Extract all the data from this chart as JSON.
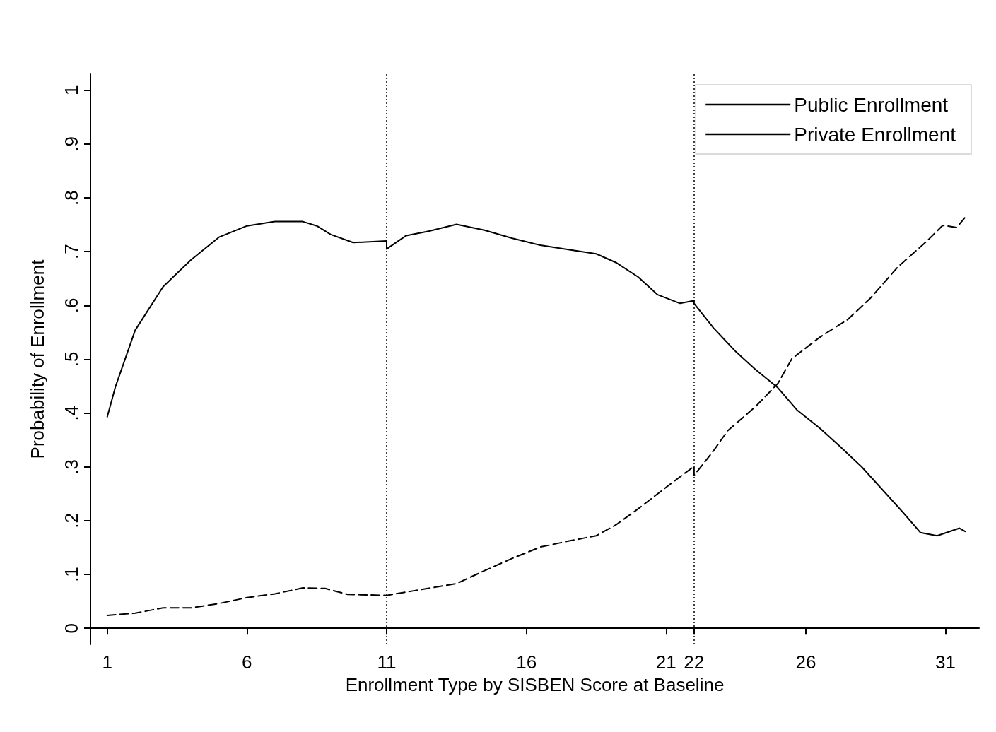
{
  "chart_data": {
    "type": "line",
    "xlabel": "Enrollment Type by SISBEN Score at Baseline",
    "ylabel": "Probability of Enrollment",
    "xlim": [
      0.4,
      32.2
    ],
    "xticks": [
      1,
      6,
      11,
      16,
      21,
      22,
      26,
      31
    ],
    "ylim": [
      -0.03,
      1.03
    ],
    "yticks": [
      {
        "value": 0,
        "label": "0"
      },
      {
        "value": 0.1,
        "label": ".1"
      },
      {
        "value": 0.2,
        "label": ".2"
      },
      {
        "value": 0.3,
        "label": ".3"
      },
      {
        "value": 0.4,
        "label": ".4"
      },
      {
        "value": 0.5,
        "label": ".5"
      },
      {
        "value": 0.6,
        "label": ".6"
      },
      {
        "value": 0.7,
        "label": ".7"
      },
      {
        "value": 0.8,
        "label": ".8"
      },
      {
        "value": 0.9,
        "label": ".9"
      },
      {
        "value": 1,
        "label": "1"
      }
    ],
    "grid": false,
    "legend": "top right",
    "marker": "none",
    "ref_lines": [
      {
        "axis": "x",
        "value": 11,
        "color": "#000000",
        "line_style": "dotted"
      },
      {
        "axis": "x",
        "value": 22,
        "color": "#000000",
        "line_style": "dotted"
      }
    ],
    "series": [
      {
        "name": "Public Enrollment",
        "color": "#000000",
        "line_style": "solid",
        "x": [
          1,
          1.3,
          2,
          3,
          4,
          5,
          6,
          7,
          8,
          8.5,
          9,
          9.8,
          11,
          11,
          11.7,
          12.5,
          13.5,
          14.5,
          15.5,
          16.5,
          17.5,
          18.5,
          19.2,
          20,
          20.7,
          21.5,
          22,
          22,
          22.7,
          23.5,
          24.2,
          25,
          25.7,
          26.5,
          27.2,
          28,
          28.7,
          29.5,
          30.1,
          30.7,
          31.5,
          31.7
        ],
        "values": [
          0.393,
          0.45,
          0.554,
          0.635,
          0.685,
          0.727,
          0.748,
          0.756,
          0.756,
          0.748,
          0.732,
          0.717,
          0.72,
          0.705,
          0.73,
          0.738,
          0.751,
          0.74,
          0.725,
          0.712,
          0.704,
          0.696,
          0.68,
          0.653,
          0.62,
          0.604,
          0.609,
          0.604,
          0.558,
          0.514,
          0.481,
          0.447,
          0.405,
          0.372,
          0.339,
          0.3,
          0.26,
          0.214,
          0.178,
          0.172,
          0.186,
          0.18
        ]
      },
      {
        "name": "Private Enrollment",
        "color": "#000000",
        "line_style": "dashed",
        "x": [
          1,
          2,
          3,
          4,
          5,
          6,
          7,
          8,
          8.8,
          9.6,
          11,
          12,
          13.5,
          14.5,
          15.5,
          16.5,
          17.5,
          18.5,
          19.2,
          20,
          21,
          22,
          22,
          22.7,
          23.2,
          24.2,
          25,
          25.5,
          26.5,
          27.5,
          28.3,
          29.3,
          30.3,
          30.9,
          31.4,
          31.7
        ],
        "values": [
          0.024,
          0.028,
          0.038,
          0.038,
          0.046,
          0.057,
          0.064,
          0.075,
          0.074,
          0.063,
          0.061,
          0.07,
          0.083,
          0.107,
          0.13,
          0.151,
          0.162,
          0.172,
          0.192,
          0.222,
          0.262,
          0.301,
          0.284,
          0.33,
          0.367,
          0.412,
          0.455,
          0.501,
          0.541,
          0.574,
          0.613,
          0.672,
          0.718,
          0.749,
          0.745,
          0.764
        ]
      }
    ]
  }
}
